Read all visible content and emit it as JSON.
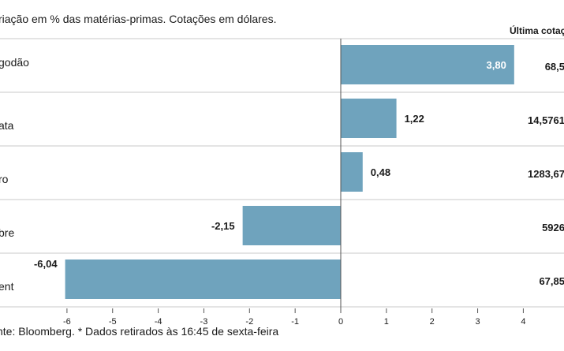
{
  "subtitle": "riação em % das matérias-primas. Cotações em dólares.",
  "last_quote_header": "Última cotaç",
  "source": "nte: Bloomberg.  * Dados retirados às 16:45 de sexta-feira",
  "colors": {
    "bar": "#6fa3bd",
    "grid": "#c8c8c8",
    "axis": "#555555"
  },
  "chart_data": {
    "type": "bar",
    "orientation": "horizontal",
    "categories": [
      "godão",
      "ata",
      "ro",
      "bre",
      "ent"
    ],
    "values": [
      3.8,
      1.22,
      0.48,
      -2.15,
      -6.04
    ],
    "value_labels": [
      "3,80",
      "1,22",
      "0,48",
      "-2,15",
      "-6,04"
    ],
    "last_quote": [
      "68,5",
      "14,5761",
      "1283,67",
      "5926",
      "67,85"
    ],
    "xlim": [
      -6.5,
      4.5
    ],
    "xticks": [
      -6,
      -5,
      -4,
      -3,
      -2,
      -1,
      0,
      1,
      2,
      3,
      4
    ],
    "xtick_labels": [
      "-6",
      "-5",
      "-4",
      "-3",
      "-2",
      "-1",
      "0",
      "1",
      "2",
      "3",
      "4"
    ],
    "grid": "horizontal row separators"
  }
}
